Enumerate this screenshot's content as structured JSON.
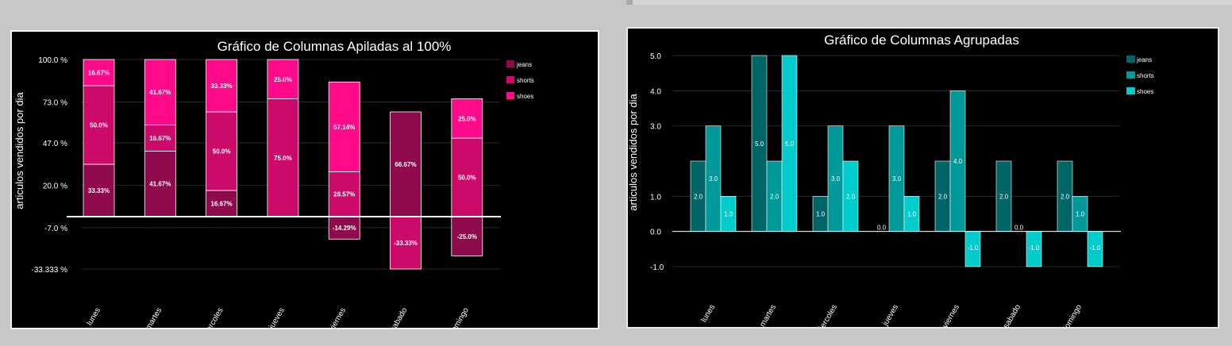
{
  "colors": {
    "jeans": "#8e0a4c",
    "shorts": "#cc0a6a",
    "shoes": "#ff0a88",
    "g_jeans": "#006566",
    "g_shorts": "#009999",
    "g_shoes": "#00cccc"
  },
  "chart_data": [
    {
      "type": "bar",
      "stacked": true,
      "title": "Gráfico de Columnas Apiladas al 100%",
      "ylabel": "articulos vendidos por dia",
      "categories": [
        "lunes",
        "martes",
        "miercoles",
        "jueves",
        "viernes",
        "sabado",
        "domingo"
      ],
      "y_ticks": [
        {
          "v": 100,
          "label": "100.0 %"
        },
        {
          "v": 73,
          "label": "73.0 %"
        },
        {
          "v": 47,
          "label": "47.0 %"
        },
        {
          "v": 20,
          "label": "20.0 %"
        },
        {
          "v": -7,
          "label": "-7.0 %"
        },
        {
          "v": -33.333,
          "label": "-33.333 %"
        }
      ],
      "ylim": [
        -33.333,
        100
      ],
      "legend_position": "top-right",
      "series": [
        {
          "name": "jeans",
          "color_key": "jeans",
          "values": [
            33.33,
            41.67,
            16.67,
            0,
            -14.29,
            66.67,
            -25.0
          ],
          "labels": [
            "33.33%",
            "41.67%",
            "16.67%",
            "",
            "-14.29%",
            "66.67%",
            "-25.0%"
          ]
        },
        {
          "name": "shorts",
          "color_key": "shorts",
          "values": [
            50.0,
            16.67,
            50.0,
            75.0,
            28.57,
            -33.33,
            50.0
          ],
          "labels": [
            "50.0%",
            "16.67%",
            "50.0%",
            "75.0%",
            "28.57%",
            "-33.33%",
            "50.0%"
          ]
        },
        {
          "name": "shoes",
          "color_key": "shoes",
          "values": [
            16.67,
            41.67,
            33.33,
            25.0,
            57.14,
            0,
            25.0
          ],
          "labels": [
            "16.67%",
            "41.67%",
            "33.33%",
            "25.0%",
            "57.14%",
            "",
            "25.0%"
          ]
        }
      ]
    },
    {
      "type": "bar",
      "stacked": false,
      "title": "Gráfico de Columnas Agrupadas",
      "ylabel": "articulos vendidos por dia",
      "categories": [
        "lunes",
        "martes",
        "miercoles",
        "jueves",
        "viernes",
        "sabado",
        "domingo"
      ],
      "y_ticks": [
        {
          "v": 5,
          "label": "5.0"
        },
        {
          "v": 4,
          "label": "4.0"
        },
        {
          "v": 3,
          "label": "3.0"
        },
        {
          "v": 1,
          "label": "1.0"
        },
        {
          "v": 0,
          "label": "0.0"
        },
        {
          "v": -1,
          "label": "-1.0"
        }
      ],
      "ylim": [
        -1,
        5
      ],
      "legend_position": "top-right",
      "series": [
        {
          "name": "jeans",
          "color_key": "g_jeans",
          "values": [
            2,
            5,
            1,
            0,
            2,
            2,
            2
          ],
          "labels": [
            "2.0",
            "5.0",
            "1.0",
            "0.0",
            "2.0",
            "2.0",
            "2.0"
          ]
        },
        {
          "name": "shorts",
          "color_key": "g_shorts",
          "values": [
            3,
            2,
            3,
            3,
            4,
            0,
            1
          ],
          "labels": [
            "3.0",
            "2.0",
            "3.0",
            "3.0",
            "4.0",
            "0.0",
            "1.0"
          ]
        },
        {
          "name": "shoes",
          "color_key": "g_shoes",
          "values": [
            1,
            5,
            2,
            1,
            -1,
            -1,
            -1
          ],
          "labels": [
            "1.0",
            "5.0",
            "2.0",
            "1.0",
            "-1.0",
            "-1.0",
            "-1.0"
          ]
        }
      ]
    }
  ]
}
